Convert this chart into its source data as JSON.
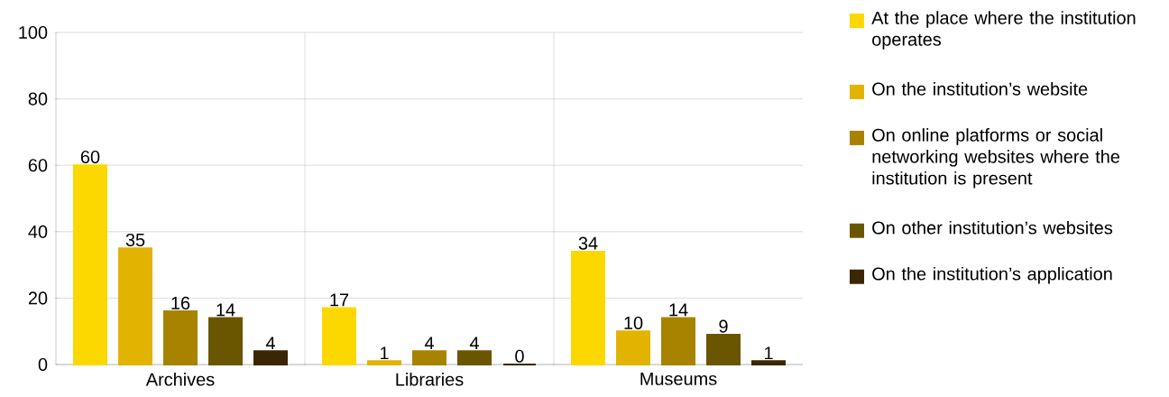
{
  "chart_data": {
    "type": "bar",
    "categories": [
      "Archives",
      "Libraries",
      "Museums"
    ],
    "series": [
      {
        "name": "At the place where the institution operates",
        "color": "#fcd800",
        "values": [
          60,
          17,
          34
        ]
      },
      {
        "name": "On the institution’s website",
        "color": "#e2b300",
        "values": [
          35,
          1,
          10
        ]
      },
      {
        "name": "On online platforms or social networking websites where the institution is present",
        "color": "#a88300",
        "values": [
          16,
          4,
          14
        ]
      },
      {
        "name": "On other institution’s websites",
        "color": "#6b5600",
        "values": [
          14,
          4,
          9
        ]
      },
      {
        "name": "On the institution’s application",
        "color": "#3a2600",
        "values": [
          4,
          0,
          1
        ]
      }
    ],
    "ylim": [
      0,
      100
    ],
    "yticks": [
      0,
      20,
      40,
      60,
      80,
      100
    ],
    "grid": true,
    "legend": "right",
    "data_labels": true
  }
}
